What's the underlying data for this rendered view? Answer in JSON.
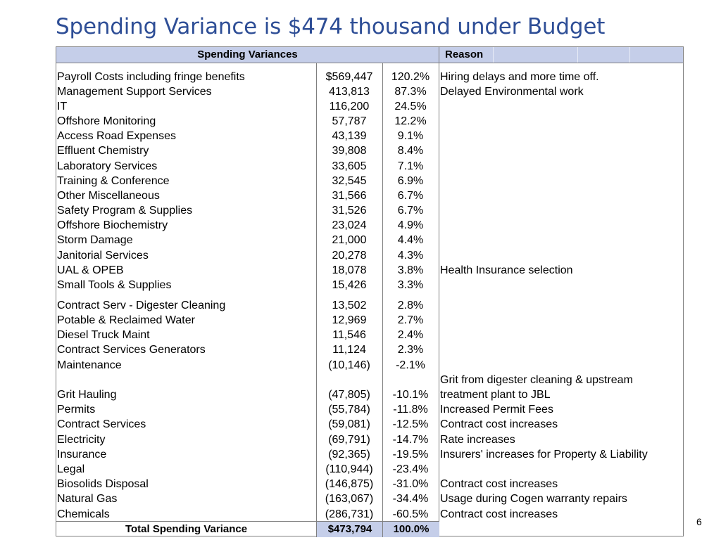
{
  "title": "Spending Variance is $474 thousand under Budget",
  "page_number": "6",
  "header": {
    "left": "Spending Variances",
    "right": "Reason"
  },
  "rows": [
    {
      "name": "Payroll Costs including fringe benefits",
      "amount": "$569,447",
      "pct": "120.2%",
      "reason": "Hiring delays and more time off."
    },
    {
      "name": "Management Support Services",
      "amount": "413,813",
      "pct": "87.3%",
      "reason": "Delayed Environmental  work"
    },
    {
      "name": "IT",
      "amount": "116,200",
      "pct": "24.5%",
      "reason": ""
    },
    {
      "name": "Offshore Monitoring",
      "amount": "57,787",
      "pct": "12.2%",
      "reason": ""
    },
    {
      "name": "Access Road Expenses",
      "amount": "43,139",
      "pct": "9.1%",
      "reason": ""
    },
    {
      "name": "Effluent Chemistry",
      "amount": "39,808",
      "pct": "8.4%",
      "reason": ""
    },
    {
      "name": "Laboratory Services",
      "amount": "33,605",
      "pct": "7.1%",
      "reason": ""
    },
    {
      "name": "Training & Conference",
      "amount": "32,545",
      "pct": "6.9%",
      "reason": ""
    },
    {
      "name": "Other Miscellaneous",
      "amount": "31,566",
      "pct": "6.7%",
      "reason": ""
    },
    {
      "name": "Safety Program & Supplies",
      "amount": "31,526",
      "pct": "6.7%",
      "reason": ""
    },
    {
      "name": "Offshore Biochemistry",
      "amount": "23,024",
      "pct": "4.9%",
      "reason": ""
    },
    {
      "name": "Storm Damage",
      "amount": "21,000",
      "pct": "4.4%",
      "reason": ""
    },
    {
      "name": "Janitorial Services",
      "amount": "20,278",
      "pct": "4.3%",
      "reason": ""
    },
    {
      "name": "UAL & OPEB",
      "amount": "18,078",
      "pct": "3.8%",
      "reason": "Health Insurance selection"
    },
    {
      "name": "Small Tools & Supplies",
      "amount": "15,426",
      "pct": "3.3%",
      "reason": ""
    },
    {
      "name": "Contract Serv - Digester Cleaning",
      "amount": "13,502",
      "pct": "2.8%",
      "reason": ""
    },
    {
      "name": "Potable & Reclaimed Water",
      "amount": "12,969",
      "pct": "2.7%",
      "reason": ""
    },
    {
      "name": "Diesel Truck Maint",
      "amount": "11,546",
      "pct": "2.4%",
      "reason": ""
    },
    {
      "name": "Contract Services Generators",
      "amount": "11,124",
      "pct": "2.3%",
      "reason": ""
    },
    {
      "name": "Maintenance",
      "amount": "(10,146)",
      "pct": "-2.1%",
      "reason": ""
    },
    {
      "name": "Grit Hauling",
      "amount": "(47,805)",
      "pct": "-10.1%",
      "reason": "treatment plant to JBL",
      "reason_above": "Grit from digester cleaning & upstream"
    },
    {
      "name": "Permits",
      "amount": "(55,784)",
      "pct": "-11.8%",
      "reason": "Increased Permit Fees"
    },
    {
      "name": "Contract Services",
      "amount": "(59,081)",
      "pct": "-12.5%",
      "reason": "Contract cost increases"
    },
    {
      "name": "Electricity",
      "amount": "(69,791)",
      "pct": "-14.7%",
      "reason": "Rate increases"
    },
    {
      "name": "Insurance",
      "amount": "(92,365)",
      "pct": "-19.5%",
      "reason": "Insurers' increases for Property & Liability"
    },
    {
      "name": "Legal",
      "amount": "(110,944)",
      "pct": "-23.4%",
      "reason": ""
    },
    {
      "name": "Biosolids Disposal",
      "amount": "(146,875)",
      "pct": "-31.0%",
      "reason": "Contract cost increases"
    },
    {
      "name": "Natural Gas",
      "amount": "(163,067)",
      "pct": "-34.4%",
      "reason": "Usage during Cogen warranty repairs"
    },
    {
      "name": "Chemicals",
      "amount": "(286,731)",
      "pct": "-60.5%",
      "reason": "Contract cost increases"
    }
  ],
  "total": {
    "label": "Total Spending Variance",
    "amount": "$473,794",
    "pct": "100.0%"
  },
  "colors": {
    "title": "#2e4e96",
    "header_fill": "#c5cee9",
    "border": "#7f7f7f"
  }
}
